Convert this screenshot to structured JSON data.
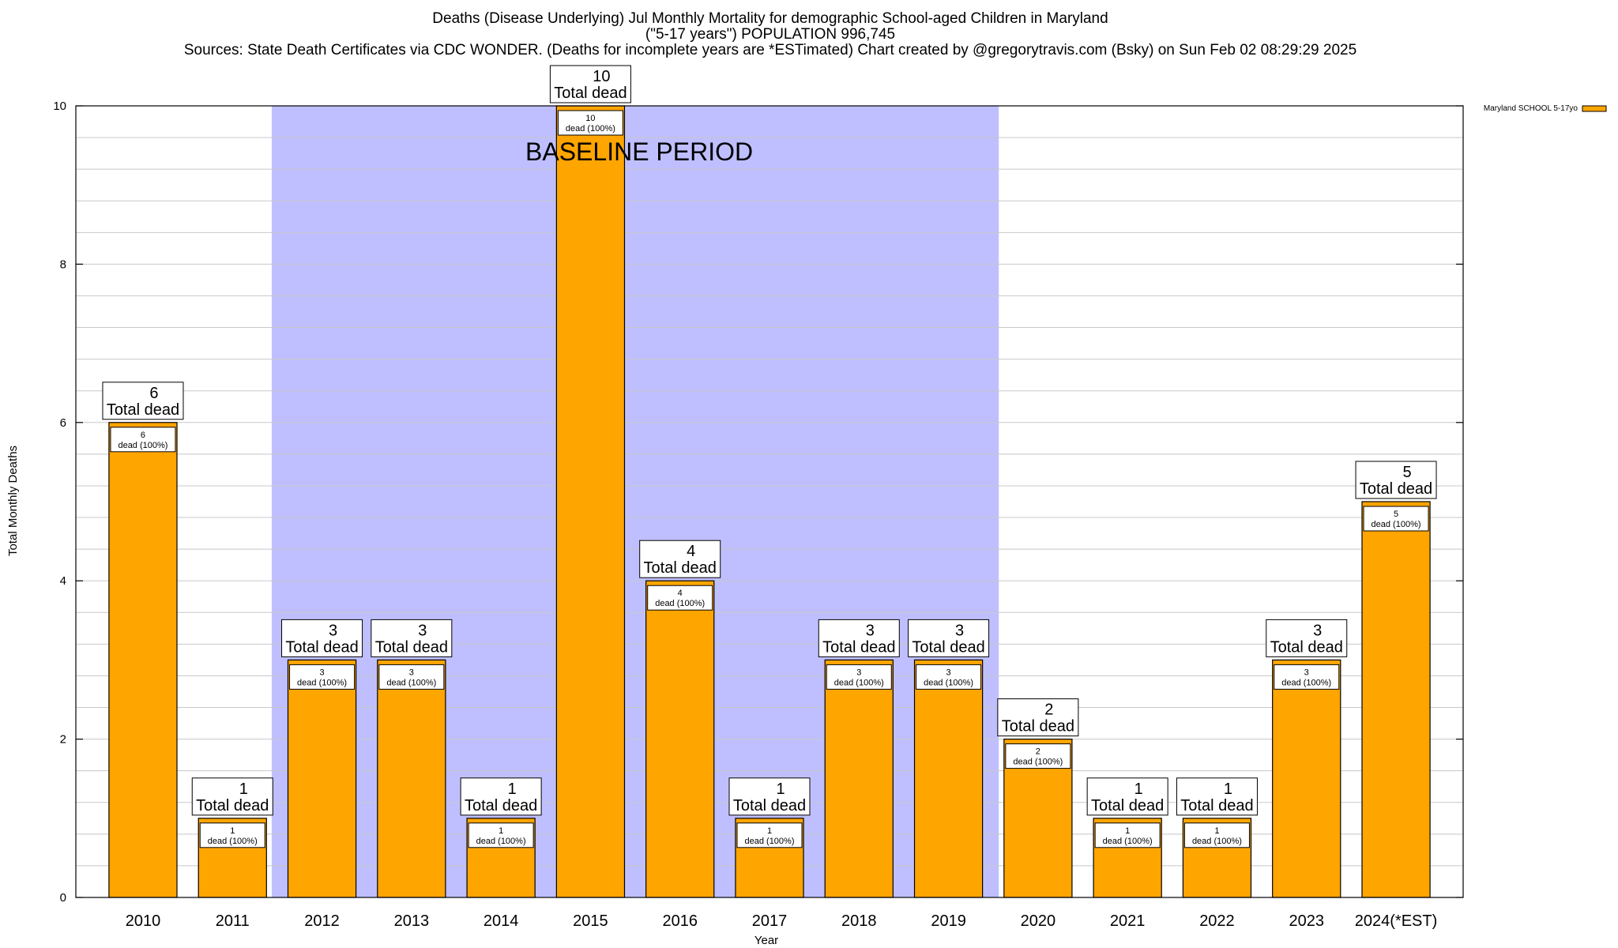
{
  "header": {
    "title_line1": "Deaths (Disease Underlying) Jul Monthly Mortality for demographic School-aged Children in Maryland",
    "title_line2": "(\"5-17 years\") POPULATION 996,745",
    "title_line3": "Sources: State Death Certificates via CDC WONDER. (Deaths for incomplete years are *ESTimated)                Chart created by @gregorytravis.com (Bsky) on Sun Feb 02 08:29:29 2025"
  },
  "chart_data": {
    "type": "bar",
    "xlabel": "Year",
    "ylabel": "Total Monthly Deaths",
    "ylim": [
      0,
      10
    ],
    "yticks": [
      0,
      2,
      4,
      6,
      8,
      10
    ],
    "grid": true,
    "categories": [
      "2010",
      "2011",
      "2012",
      "2013",
      "2014",
      "2015",
      "2016",
      "2017",
      "2018",
      "2019",
      "2020",
      "2021",
      "2022",
      "2023",
      "2024(*EST)"
    ],
    "series": [
      {
        "name": "Maryland SCHOOL 5-17yo",
        "values": [
          6,
          1,
          3,
          3,
          1,
          10,
          4,
          1,
          3,
          3,
          2,
          1,
          1,
          3,
          5
        ]
      }
    ],
    "total_label": "Total dead",
    "inner_label": "dead (100%)",
    "baseline": {
      "label": "BASELINE PERIOD",
      "from": "2012",
      "to": "2019"
    },
    "legend_position": "top-right"
  },
  "colors": {
    "bar_fill": "#FFA500",
    "baseline_fill": "#BFBFFF",
    "grid": "#c8c8c8"
  }
}
